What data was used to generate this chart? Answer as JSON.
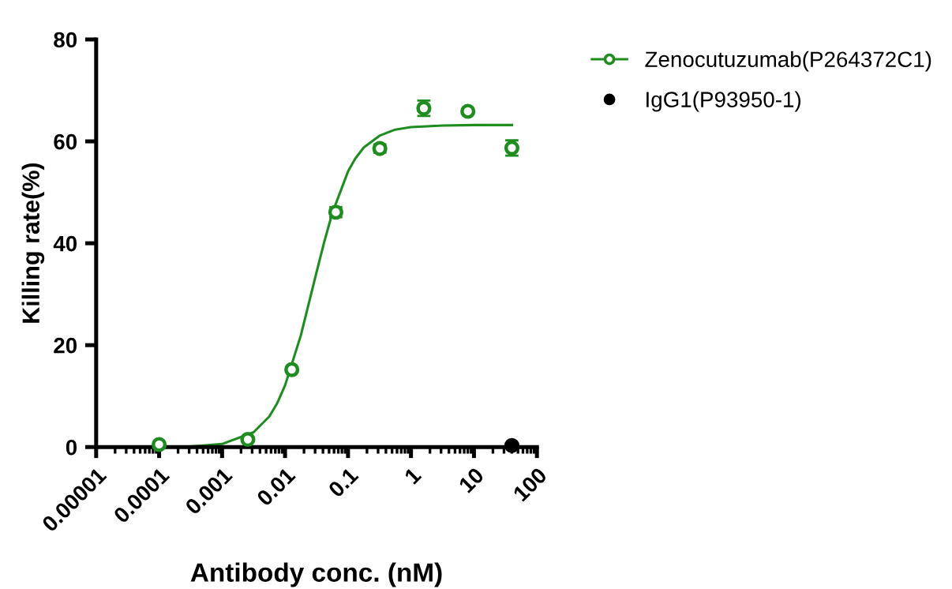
{
  "chart_data": {
    "type": "scatter",
    "xlabel": "Antibody conc. (nM)",
    "ylabel": "Killing rate(%)",
    "log": "x",
    "xlim": [
      1e-05,
      100
    ],
    "xticks": [
      {
        "value": 1e-05,
        "label": "0.00001"
      },
      {
        "value": 0.0001,
        "label": "0.0001"
      },
      {
        "value": 0.001,
        "label": "0.001"
      },
      {
        "value": 0.01,
        "label": "0.01"
      },
      {
        "value": 0.1,
        "label": "0.1"
      },
      {
        "value": 1,
        "label": "1"
      },
      {
        "value": 10,
        "label": "10"
      },
      {
        "value": 100,
        "label": "100"
      }
    ],
    "ylim": [
      0,
      80
    ],
    "yticks": [
      0,
      20,
      40,
      60,
      80
    ],
    "grid": false,
    "legend": "top right",
    "marker": "circle",
    "series": [
      {
        "name": "Zenocutuzumab(P264372C1)",
        "color": "#1e8c1e",
        "x": [
          0.0001,
          0.00256,
          0.0128,
          0.064,
          0.32,
          1.6,
          8,
          40
        ],
        "values": [
          0.5,
          1.5,
          15.2,
          46.1,
          58.6,
          66.5,
          65.9,
          58.7
        ],
        "errors": [
          null,
          null,
          null,
          1,
          0.8,
          1.5,
          null,
          1.5
        ]
      },
      {
        "type": "line",
        "color": "#1e8c1e",
        "marker": "none",
        "x": [
          0.0001,
          0.000316,
          0.001,
          0.00316,
          0.00562,
          0.0075,
          0.01,
          0.0178,
          0.0316,
          0.042,
          0.0562,
          0.1,
          0.13,
          0.178,
          0.316,
          0.56,
          1,
          3.16,
          10,
          40
        ],
        "values": [
          0,
          0.1,
          0.6,
          2.9,
          6,
          8.6,
          12.1,
          21.9,
          34.3,
          40.3,
          45.9,
          54.1,
          56.6,
          58.8,
          61.1,
          62.3,
          62.8,
          63.1,
          63.2,
          63.2
        ]
      },
      {
        "name": "IgG1(P93950-1)",
        "color": "#000000",
        "x": [
          40
        ],
        "values": [
          0.3
        ]
      }
    ]
  }
}
